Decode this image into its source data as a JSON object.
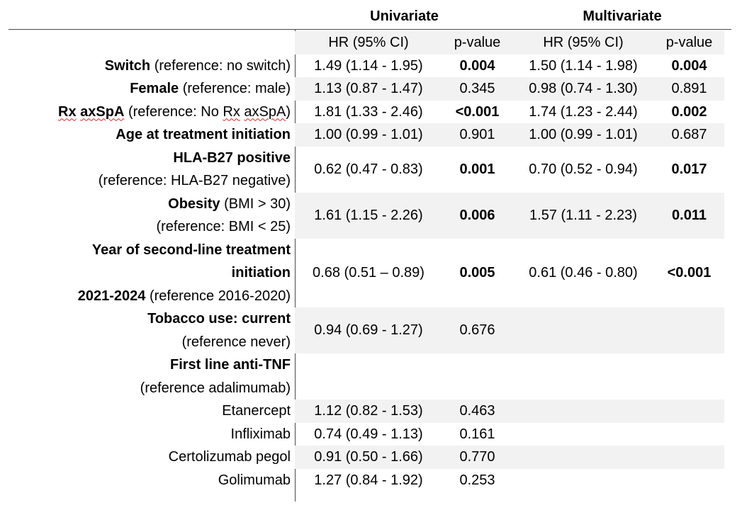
{
  "headers": {
    "univariate": "Univariate",
    "multivariate": "Multivariate",
    "hr": "HR (95% CI)",
    "pvalue": "p-value"
  },
  "rows": [
    {
      "bold": "Switch",
      "rest": " (reference: no switch)",
      "u_hr": "1.49 (1.14 - 1.95)",
      "u_p": "0.004",
      "m_hr": "1.50 (1.14 - 1.98)",
      "m_p": "0.004"
    },
    {
      "bold": "Female",
      "rest": " (reference: male)",
      "u_hr": "1.13 (0.87 - 1.47)",
      "u_p": "0.345",
      "m_hr": "0.98 (0.74 - 1.30)",
      "m_p": "0.891"
    },
    {
      "bold1": "Rx",
      "bold2": "axSpA",
      "mid": " (reference: No ",
      "sq1": "Rx",
      "sq2": "axSpA",
      "end": ")",
      "u_hr": "1.81 (1.33 - 2.46)",
      "u_p": "<0.001",
      "m_hr": "1.74 (1.23 - 2.44)",
      "m_p": "0.002"
    },
    {
      "bold": "Age at treatment initiation",
      "u_hr": "1.00 (0.99 - 1.01)",
      "u_p": "0.901",
      "m_hr": "1.00 (0.99 - 1.01)",
      "m_p": "0.687"
    },
    {
      "line1": "HLA-B27 positive",
      "line2": "(reference: HLA-B27 negative)",
      "u_hr": "0.62 (0.47 - 0.83)",
      "u_p": "0.001",
      "m_hr": "0.70 (0.52 - 0.94)",
      "m_p": "0.017"
    },
    {
      "line1_bold": "Obesity",
      "line1_rest": " (BMI > 30)",
      "line2": "(reference: BMI < 25)",
      "u_hr": "1.61 (1.15 - 2.26)",
      "u_p": "0.006",
      "m_hr": "1.57 (1.11 - 2.23)",
      "m_p": "0.011"
    },
    {
      "line1": "Year of second-line treatment",
      "line2": "initiation",
      "line3_bold": "2021-2024",
      "line3_rest": " (reference 2016-2020)",
      "u_hr": "0.68 (0.51 – 0.89)",
      "u_p": "0.005",
      "m_hr": "0.61 (0.46 - 0.80)",
      "m_p": "<0.001"
    },
    {
      "line1": "Tobacco use: current",
      "line2": "(reference never)",
      "u_hr": "0.94 (0.69 - 1.27)",
      "u_p": "0.676"
    },
    {
      "line1": "First line anti-TNF",
      "line2": "(reference adalimumab)"
    },
    {
      "label": "Etanercept",
      "u_hr": "1.12 (0.82 - 1.53)",
      "u_p": "0.463"
    },
    {
      "label": "Infliximab",
      "u_hr": "0.74 (0.49 - 1.13)",
      "u_p": "0.161"
    },
    {
      "label": "Certolizumab pegol",
      "u_hr": "0.91 (0.50 - 1.66)",
      "u_p": "0.770"
    },
    {
      "label": "Golimumab",
      "u_hr": "1.27 (0.84 - 1.92)",
      "u_p": "0.253"
    }
  ]
}
